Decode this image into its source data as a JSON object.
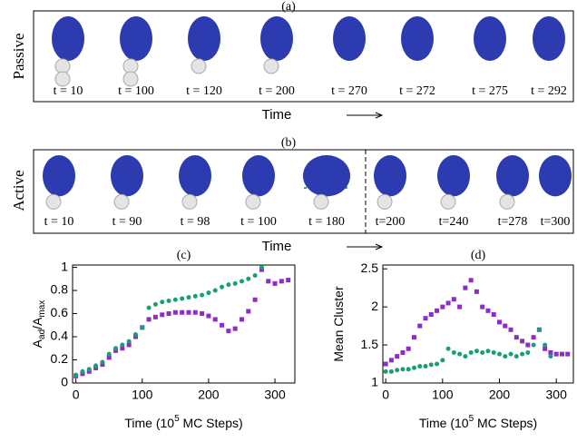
{
  "panels": [
    {
      "label": "(a)",
      "row_label": "Passive",
      "times": [
        "t = 10",
        "t = 100",
        "t = 120",
        "t = 200",
        "t = 270",
        "t = 272",
        "t = 275",
        "t = 292"
      ],
      "axis_label": "Time"
    },
    {
      "label": "(b)",
      "row_label": "Active",
      "times": [
        "t = 10",
        "t = 90",
        "t = 98",
        "t = 100",
        "t = 180",
        "t=200",
        "t=240",
        "t=278",
        "t=300"
      ],
      "axis_label": "Time"
    }
  ],
  "chart_data": [
    {
      "type": "scatter",
      "title": "(c)",
      "ylabel": {
        "main": "A",
        "sub": "ad",
        "main2": "/A",
        "sub2": "max"
      },
      "xlabel": {
        "main": "Time (10",
        "sup": "5",
        "rest": " MC Steps)"
      },
      "xlim": [
        -5,
        330
      ],
      "ylim": [
        0,
        1.02
      ],
      "xticks": [
        0,
        100,
        200,
        300
      ],
      "yticks": [
        0,
        0.2,
        0.4,
        0.6,
        0.8,
        1
      ],
      "series": [
        {
          "color": "#8e2cc8",
          "marker": "square",
          "x": [
            0,
            10,
            20,
            30,
            40,
            50,
            60,
            70,
            80,
            90,
            100,
            110,
            120,
            130,
            140,
            150,
            160,
            170,
            180,
            190,
            200,
            210,
            220,
            230,
            240,
            250,
            260,
            270,
            280,
            290,
            300,
            310,
            320
          ],
          "values": [
            0.06,
            0.08,
            0.1,
            0.13,
            0.16,
            0.22,
            0.28,
            0.3,
            0.33,
            0.4,
            0.48,
            0.55,
            0.57,
            0.59,
            0.6,
            0.61,
            0.61,
            0.61,
            0.61,
            0.6,
            0.58,
            0.55,
            0.5,
            0.45,
            0.47,
            0.55,
            0.62,
            0.72,
            0.98,
            0.88,
            0.86,
            0.88,
            0.89
          ]
        },
        {
          "color": "#1a9e78",
          "marker": "circle",
          "x": [
            0,
            10,
            20,
            30,
            40,
            50,
            60,
            70,
            80,
            90,
            100,
            110,
            120,
            130,
            140,
            150,
            160,
            170,
            180,
            190,
            200,
            210,
            220,
            230,
            240,
            250,
            260,
            270,
            280
          ],
          "values": [
            0.07,
            0.1,
            0.12,
            0.15,
            0.18,
            0.25,
            0.3,
            0.33,
            0.36,
            0.42,
            0.48,
            0.65,
            0.68,
            0.7,
            0.71,
            0.72,
            0.73,
            0.74,
            0.75,
            0.76,
            0.78,
            0.8,
            0.83,
            0.85,
            0.86,
            0.88,
            0.9,
            0.93,
            1.0
          ]
        }
      ]
    },
    {
      "type": "scatter",
      "title": "(d)",
      "ylabel": {
        "main": "Mean Cluster"
      },
      "xlabel": {
        "main": "Time (10",
        "sup": "5",
        "rest": " MC Steps)"
      },
      "xlim": [
        -5,
        330
      ],
      "ylim": [
        1,
        2.55
      ],
      "xticks": [
        0,
        100,
        200,
        300
      ],
      "yticks": [
        1,
        1.5,
        2,
        2.5
      ],
      "series": [
        {
          "color": "#8e2cc8",
          "marker": "square",
          "x": [
            0,
            10,
            20,
            30,
            40,
            50,
            60,
            70,
            80,
            90,
            100,
            110,
            120,
            130,
            140,
            150,
            160,
            170,
            180,
            190,
            200,
            210,
            220,
            230,
            240,
            250,
            260,
            270,
            280,
            290,
            300,
            310,
            320
          ],
          "values": [
            1.25,
            1.3,
            1.35,
            1.4,
            1.45,
            1.6,
            1.75,
            1.85,
            1.9,
            1.95,
            2.0,
            2.05,
            2.1,
            2.0,
            2.25,
            2.35,
            2.2,
            2.0,
            1.95,
            1.9,
            1.8,
            1.75,
            1.7,
            1.6,
            1.55,
            1.5,
            1.6,
            1.7,
            1.45,
            1.4,
            1.38,
            1.38,
            1.38
          ]
        },
        {
          "color": "#1a9e78",
          "marker": "circle",
          "x": [
            0,
            10,
            20,
            30,
            40,
            50,
            60,
            70,
            80,
            90,
            100,
            110,
            120,
            130,
            140,
            150,
            160,
            170,
            180,
            190,
            200,
            210,
            220,
            230,
            240,
            250,
            260,
            270,
            280,
            290
          ],
          "values": [
            1.15,
            1.15,
            1.17,
            1.18,
            1.18,
            1.2,
            1.22,
            1.22,
            1.24,
            1.25,
            1.3,
            1.45,
            1.4,
            1.38,
            1.35,
            1.4,
            1.42,
            1.4,
            1.42,
            1.4,
            1.38,
            1.35,
            1.38,
            1.35,
            1.38,
            1.4,
            1.5,
            1.7,
            1.5,
            1.35
          ]
        }
      ]
    }
  ]
}
